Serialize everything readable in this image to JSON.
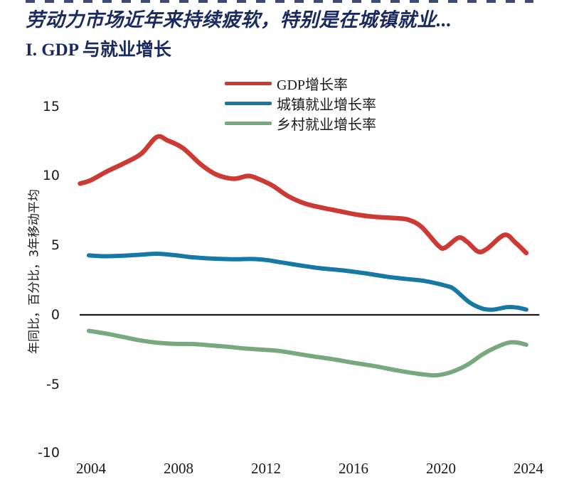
{
  "header": {
    "title_line1": "劳动力市场近年来持续疲软，特别是在城镇就业...",
    "title_line2": "I. GDP 与就业增长"
  },
  "colors": {
    "title": "#1b2a5e",
    "axis_line": "#1a1a1a",
    "gdp_red": "#cc3a33",
    "urban_blue": "#1579a3",
    "rural_green": "#78a87d"
  },
  "chart_data": {
    "type": "line",
    "title": "I. GDP 与就业增长",
    "ylabel": "年同比，百分比，3年移动平均",
    "xlabel": "",
    "grid": false,
    "legend_position": "top-center",
    "y_ticks": [
      15,
      10,
      5,
      0,
      -5,
      -10
    ],
    "x_ticks": [
      2004,
      2008,
      2012,
      2016,
      2020,
      2024
    ],
    "ylim": [
      -10,
      15
    ],
    "xlim": [
      2003.5,
      2024.5
    ],
    "series": [
      {
        "name": "GDP增长率",
        "color": "#cc3a33",
        "points": [
          [
            2003.5,
            9.45
          ],
          [
            2004,
            9.7
          ],
          [
            2004.7,
            10.3
          ],
          [
            2005.5,
            10.9
          ],
          [
            2006.3,
            11.6
          ],
          [
            2007,
            12.8
          ],
          [
            2007.5,
            12.55
          ],
          [
            2008.2,
            12.0
          ],
          [
            2009,
            10.85
          ],
          [
            2009.6,
            10.2
          ],
          [
            2010.1,
            9.9
          ],
          [
            2010.6,
            9.8
          ],
          [
            2011.2,
            10.0
          ],
          [
            2011.7,
            9.75
          ],
          [
            2012.3,
            9.3
          ],
          [
            2013,
            8.55
          ],
          [
            2013.8,
            8.0
          ],
          [
            2014.6,
            7.7
          ],
          [
            2015.4,
            7.45
          ],
          [
            2016.2,
            7.2
          ],
          [
            2017,
            7.05
          ],
          [
            2018,
            6.95
          ],
          [
            2018.5,
            6.85
          ],
          [
            2019.1,
            6.35
          ],
          [
            2019.9,
            4.95
          ],
          [
            2020.2,
            4.85
          ],
          [
            2020.8,
            5.55
          ],
          [
            2021.2,
            5.25
          ],
          [
            2021.7,
            4.55
          ],
          [
            2022.1,
            4.75
          ],
          [
            2022.9,
            5.75
          ],
          [
            2023.4,
            5.2
          ],
          [
            2023.9,
            4.45
          ]
        ]
      },
      {
        "name": "城镇就业增长率",
        "color": "#1579a3",
        "points": [
          [
            2003.9,
            4.28
          ],
          [
            2004.6,
            4.22
          ],
          [
            2005.4,
            4.25
          ],
          [
            2006.2,
            4.32
          ],
          [
            2007,
            4.4
          ],
          [
            2007.8,
            4.3
          ],
          [
            2008.6,
            4.15
          ],
          [
            2009.5,
            4.05
          ],
          [
            2010.5,
            4.0
          ],
          [
            2011.3,
            4.02
          ],
          [
            2012,
            3.95
          ],
          [
            2012.8,
            3.75
          ],
          [
            2013.6,
            3.55
          ],
          [
            2014.5,
            3.35
          ],
          [
            2015.5,
            3.2
          ],
          [
            2016.5,
            3.0
          ],
          [
            2017.5,
            2.75
          ],
          [
            2018.3,
            2.6
          ],
          [
            2019.2,
            2.45
          ],
          [
            2020.2,
            2.1
          ],
          [
            2020.6,
            1.85
          ],
          [
            2021.3,
            0.9
          ],
          [
            2021.9,
            0.45
          ],
          [
            2022.4,
            0.38
          ],
          [
            2023.0,
            0.55
          ],
          [
            2023.5,
            0.52
          ],
          [
            2023.9,
            0.38
          ]
        ]
      },
      {
        "name": "乡村就业增长率",
        "color": "#78a87d",
        "points": [
          [
            2003.9,
            -1.15
          ],
          [
            2004.7,
            -1.35
          ],
          [
            2005.5,
            -1.6
          ],
          [
            2006.3,
            -1.85
          ],
          [
            2007,
            -2.0
          ],
          [
            2007.8,
            -2.08
          ],
          [
            2008.7,
            -2.1
          ],
          [
            2009.5,
            -2.2
          ],
          [
            2010.3,
            -2.3
          ],
          [
            2011,
            -2.42
          ],
          [
            2011.8,
            -2.5
          ],
          [
            2012.6,
            -2.6
          ],
          [
            2013.4,
            -2.8
          ],
          [
            2014.2,
            -3.0
          ],
          [
            2015.1,
            -3.2
          ],
          [
            2016,
            -3.45
          ],
          [
            2017,
            -3.7
          ],
          [
            2018,
            -4.0
          ],
          [
            2019,
            -4.25
          ],
          [
            2019.8,
            -4.35
          ],
          [
            2020.5,
            -4.1
          ],
          [
            2021.2,
            -3.6
          ],
          [
            2021.9,
            -2.85
          ],
          [
            2022.5,
            -2.35
          ],
          [
            2023.1,
            -2.0
          ],
          [
            2023.5,
            -2.0
          ],
          [
            2023.9,
            -2.15
          ]
        ]
      }
    ]
  }
}
